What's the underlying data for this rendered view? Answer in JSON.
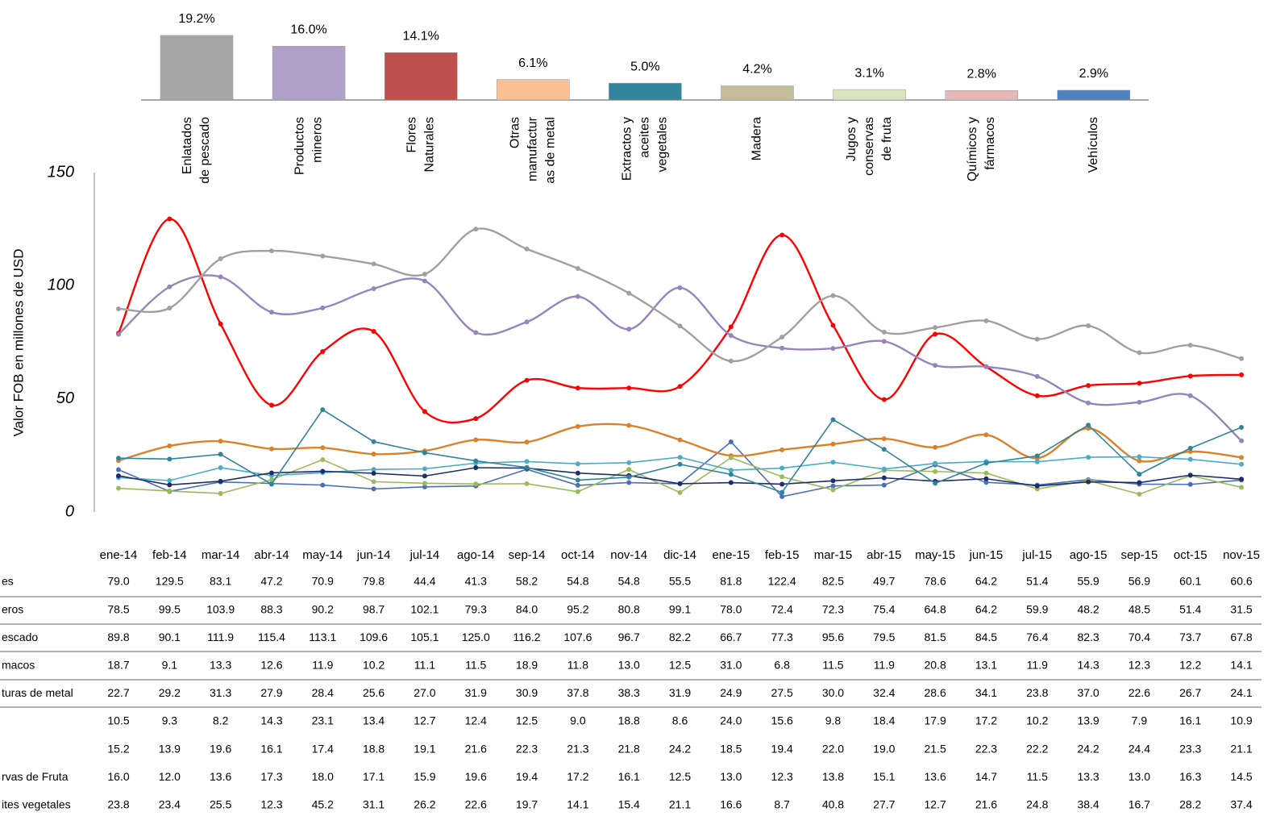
{
  "chart_data": [
    {
      "type": "bar",
      "categories": [
        [
          "Enlatados",
          "de pescado"
        ],
        [
          "Productos",
          "mineros"
        ],
        [
          "Flores",
          "Naturales"
        ],
        [
          "Otras",
          "manufactur",
          "as de metal"
        ],
        [
          "Extractos y",
          "aceites",
          "vegetales"
        ],
        [
          "Madera"
        ],
        [
          "Jugos y",
          "conservas",
          "de fruta"
        ],
        [
          "Químicos y",
          "fármacos"
        ],
        [
          "Vehículos"
        ]
      ],
      "values": [
        19.2,
        16.0,
        14.1,
        6.1,
        5.0,
        4.2,
        3.1,
        2.8,
        2.9
      ],
      "value_labels": [
        "19.2%",
        "16.0%",
        "14.1%",
        "6.1%",
        "5.0%",
        "4.2%",
        "3.1%",
        "2.8%",
        "2.9%"
      ],
      "colors": [
        "#a5a5a5",
        "#b0a0c8",
        "#c0504d",
        "#fac08f",
        "#31849b",
        "#c4bd97",
        "#d7e4bd",
        "#e6b9b8",
        "#4f81bd"
      ]
    },
    {
      "type": "line",
      "y_label": "Valor FOB en millones  de USD",
      "ylim": [
        0,
        150
      ],
      "yticks": [
        0,
        50,
        100,
        150
      ],
      "categories": [
        "ene-14",
        "feb-14",
        "mar-14",
        "abr-14",
        "may-14",
        "jun-14",
        "jul-14",
        "ago-14",
        "sep-14",
        "oct-14",
        "nov-14",
        "dic-14",
        "ene-15",
        "feb-15",
        "mar-15",
        "abr-15",
        "may-15",
        "jun-15",
        "jul-15",
        "ago-15",
        "sep-15",
        "oct-15",
        "nov-15"
      ],
      "series": [
        {
          "name": "es",
          "color": "#ff0000",
          "smooth": true,
          "values": [
            79.0,
            129.5,
            83.1,
            47.2,
            70.9,
            79.8,
            44.4,
            41.3,
            58.2,
            54.8,
            54.8,
            55.5,
            81.8,
            122.4,
            82.5,
            49.7,
            78.6,
            64.2,
            51.4,
            55.9,
            56.9,
            60.1,
            60.6
          ],
          "value_labels": [
            "79.0",
            "129.5",
            "83.1",
            "47.2",
            "70.9",
            "79.8",
            "44.4",
            "41.3",
            "58.2",
            "54.8",
            "54.8",
            "55.5",
            "81.8",
            "122.4",
            "82.5",
            "49.7",
            "78.6",
            "64.2",
            "51.4",
            "55.9",
            "56.9",
            "60.1",
            "60.6"
          ]
        },
        {
          "name": "eros",
          "color": "#9684bb",
          "smooth": true,
          "values": [
            78.5,
            99.5,
            103.9,
            88.3,
            90.2,
            98.7,
            102.1,
            79.3,
            84.0,
            95.2,
            80.8,
            99.1,
            78.0,
            72.4,
            72.3,
            75.4,
            64.8,
            64.2,
            59.9,
            48.2,
            48.5,
            51.4,
            31.5
          ],
          "value_labels": [
            "78.5",
            "99.5",
            "103.9",
            "88.3",
            "90.2",
            "98.7",
            "102.1",
            "79.3",
            "84.0",
            "95.2",
            "80.8",
            "99.1",
            "78.0",
            "72.4",
            "72.3",
            "75.4",
            "64.8",
            "64.2",
            "59.9",
            "48.2",
            "48.5",
            "51.4",
            "31.5"
          ]
        },
        {
          "name": "escado",
          "color": "#a0a0a0",
          "smooth": true,
          "values": [
            89.8,
            90.1,
            111.9,
            115.4,
            113.1,
            109.6,
            105.1,
            125.0,
            116.2,
            107.6,
            96.7,
            82.2,
            66.7,
            77.3,
            95.6,
            79.5,
            81.5,
            84.5,
            76.4,
            82.3,
            70.4,
            73.7,
            67.8
          ],
          "value_labels": [
            "89.8",
            "90.1",
            "111.9",
            "115.4",
            "113.1",
            "109.6",
            "105.1",
            "125.0",
            "116.2",
            "107.6",
            "96.7",
            "82.2",
            "66.7",
            "77.3",
            "95.6",
            "79.5",
            "81.5",
            "84.5",
            "76.4",
            "82.3",
            "70.4",
            "73.7",
            "67.8"
          ]
        },
        {
          "name": "macos",
          "color": "#4a6fb8",
          "smooth": false,
          "values": [
            18.7,
            9.1,
            13.3,
            12.6,
            11.9,
            10.2,
            11.1,
            11.5,
            18.9,
            11.8,
            13.0,
            12.5,
            31.0,
            6.8,
            11.5,
            11.9,
            20.8,
            13.1,
            11.9,
            14.3,
            12.3,
            12.2,
            14.1
          ],
          "value_labels": [
            "18.7",
            "9.1",
            "13.3",
            "12.6",
            "11.9",
            "10.2",
            "11.1",
            "11.5",
            "18.9",
            "11.8",
            "13.0",
            "12.5",
            "31.0",
            "6.8",
            "11.5",
            "11.9",
            "20.8",
            "13.1",
            "11.9",
            "14.3",
            "12.3",
            "12.2",
            "14.1"
          ]
        },
        {
          "name": "turas de metal",
          "color": "#d9822b",
          "smooth": true,
          "values": [
            22.7,
            29.2,
            31.3,
            27.9,
            28.4,
            25.6,
            27.0,
            31.9,
            30.9,
            37.8,
            38.3,
            31.9,
            24.9,
            27.5,
            30.0,
            32.4,
            28.6,
            34.1,
            23.8,
            37.0,
            22.6,
            26.7,
            24.1
          ],
          "value_labels": [
            "22.7",
            "29.2",
            "31.3",
            "27.9",
            "28.4",
            "25.6",
            "27.0",
            "31.9",
            "30.9",
            "37.8",
            "38.3",
            "31.9",
            "24.9",
            "27.5",
            "30.0",
            "32.4",
            "28.6",
            "34.1",
            "23.8",
            "37.0",
            "22.6",
            "26.7",
            "24.1"
          ]
        },
        {
          "name": null,
          "color": "#9bbb59",
          "smooth": false,
          "values": [
            10.5,
            9.3,
            8.2,
            14.3,
            23.1,
            13.4,
            12.7,
            12.4,
            12.5,
            9.0,
            18.8,
            8.6,
            24.0,
            15.6,
            9.8,
            18.4,
            17.9,
            17.2,
            10.2,
            13.9,
            7.9,
            16.1,
            10.9
          ],
          "value_labels": [
            "10.5",
            "9.3",
            "8.2",
            "14.3",
            "23.1",
            "13.4",
            "12.7",
            "12.4",
            "12.5",
            "9.0",
            "18.8",
            "8.6",
            "24.0",
            "15.6",
            "9.8",
            "18.4",
            "17.9",
            "17.2",
            "10.2",
            "13.9",
            "7.9",
            "16.1",
            "10.9"
          ]
        },
        {
          "name": null,
          "color": "#4bacc6",
          "smooth": false,
          "values": [
            15.2,
            13.9,
            19.6,
            16.1,
            17.4,
            18.8,
            19.1,
            21.6,
            22.3,
            21.3,
            21.8,
            24.2,
            18.5,
            19.4,
            22.0,
            19.0,
            21.5,
            22.3,
            22.2,
            24.2,
            24.4,
            23.3,
            21.1
          ],
          "value_labels": [
            "15.2",
            "13.9",
            "19.6",
            "16.1",
            "17.4",
            "18.8",
            "19.1",
            "21.6",
            "22.3",
            "21.3",
            "21.8",
            "24.2",
            "18.5",
            "19.4",
            "22.0",
            "19.0",
            "21.5",
            "22.3",
            "22.2",
            "24.2",
            "24.4",
            "23.3",
            "21.1"
          ]
        },
        {
          "name": "rvas de Fruta",
          "color": "#1f2d6b",
          "smooth": false,
          "values": [
            16.0,
            12.0,
            13.6,
            17.3,
            18.0,
            17.1,
            15.9,
            19.6,
            19.4,
            17.2,
            16.1,
            12.5,
            13.0,
            12.3,
            13.8,
            15.1,
            13.6,
            14.7,
            11.5,
            13.3,
            13.0,
            16.3,
            14.5
          ],
          "value_labels": [
            "16.0",
            "12.0",
            "13.6",
            "17.3",
            "18.0",
            "17.1",
            "15.9",
            "19.6",
            "19.4",
            "17.2",
            "16.1",
            "12.5",
            "13.0",
            "12.3",
            "13.8",
            "15.1",
            "13.6",
            "14.7",
            "11.5",
            "13.3",
            "13.0",
            "16.3",
            "14.5"
          ]
        },
        {
          "name": "ites vegetales",
          "color": "#31849b",
          "smooth": false,
          "values": [
            23.8,
            23.4,
            25.5,
            12.3,
            45.2,
            31.1,
            26.2,
            22.6,
            19.7,
            14.1,
            15.4,
            21.1,
            16.6,
            8.7,
            40.8,
            27.7,
            12.7,
            21.6,
            24.8,
            38.4,
            16.7,
            28.2,
            37.4
          ],
          "value_labels": [
            "23.8",
            "23.4",
            "25.5",
            "12.3",
            "45.2",
            "31.1",
            "26.2",
            "22.6",
            "19.7",
            "14.1",
            "15.4",
            "21.1",
            "16.6",
            "8.7",
            "40.8",
            "27.7",
            "12.7",
            "21.6",
            "24.8",
            "38.4",
            "16.7",
            "28.2",
            "37.4"
          ]
        }
      ]
    }
  ]
}
